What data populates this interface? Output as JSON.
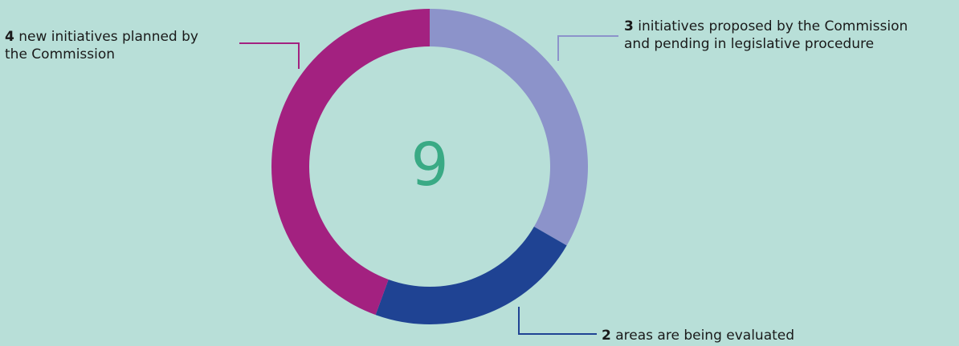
{
  "chart_data": {
    "type": "pie",
    "total": "9",
    "slices": [
      {
        "value": 3,
        "count": "3",
        "line1": "initiatives proposed by the Commission",
        "line2": "and pending in legislative procedure",
        "color": "#8c93ca"
      },
      {
        "value": 2,
        "count": "2",
        "line1": "areas are being evaluated",
        "line2": "",
        "color": "#1f4393"
      },
      {
        "value": 4,
        "count": "4",
        "line1": "new initiatives planned by",
        "line2": "the Commission",
        "color": "#a32180"
      }
    ],
    "total_color": "#3aaa85",
    "background_color": "#b8dfd8"
  }
}
